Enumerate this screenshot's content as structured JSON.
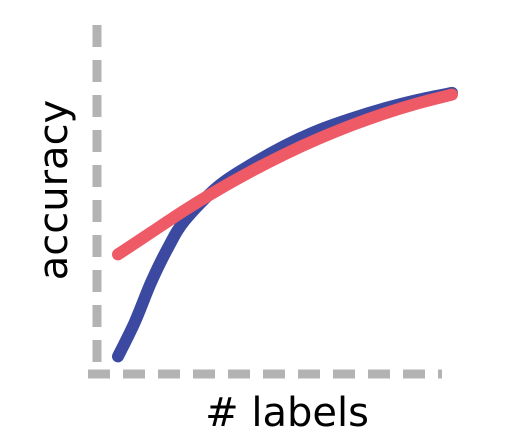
{
  "chart_data": {
    "type": "line",
    "title": "",
    "xlabel": "# labels",
    "ylabel": "accuracy",
    "grid": false,
    "legend": "none",
    "ticks": false,
    "axis_color": "#b3b3b3",
    "xlim": [
      0,
      1
    ],
    "ylim": [
      0,
      1
    ],
    "series": [
      {
        "color": "#3b4aa0",
        "x": [
          0.0,
          0.05,
          0.1,
          0.15,
          0.2,
          0.3,
          0.4,
          0.5,
          0.6,
          0.7,
          0.8,
          0.9,
          1.0
        ],
        "y": [
          0.04,
          0.14,
          0.26,
          0.36,
          0.44,
          0.54,
          0.605,
          0.66,
          0.705,
          0.74,
          0.77,
          0.795,
          0.815
        ]
      },
      {
        "color": "#ef5a67",
        "x": [
          0.0,
          0.1,
          0.2,
          0.3,
          0.4,
          0.5,
          0.6,
          0.7,
          0.8,
          0.9,
          1.0
        ],
        "y": [
          0.34,
          0.405,
          0.47,
          0.53,
          0.585,
          0.635,
          0.68,
          0.72,
          0.755,
          0.785,
          0.81
        ]
      }
    ]
  }
}
